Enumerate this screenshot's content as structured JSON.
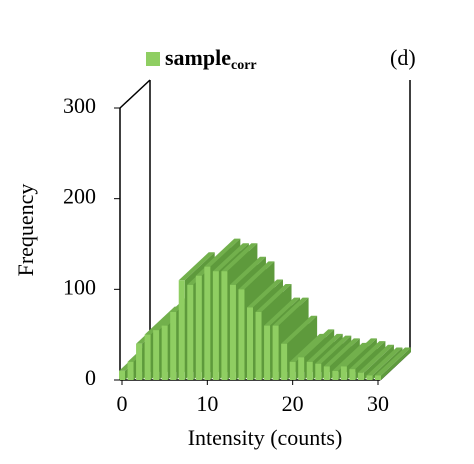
{
  "chart_data": {
    "type": "bar3d",
    "annotation": "(d)",
    "x_label": "Intensity (counts)",
    "y_label": "Frequency",
    "x": [
      0,
      1,
      2,
      3,
      4,
      5,
      6,
      7,
      8,
      9,
      10,
      11,
      12,
      13,
      14,
      15,
      16,
      17,
      18,
      19,
      20,
      21,
      22,
      23,
      24,
      25,
      26,
      27,
      28,
      29,
      30
    ],
    "series": [
      {
        "name": "sample",
        "name_subscript": "corr",
        "color": "#8fce62",
        "values": [
          10,
          20,
          40,
          50,
          55,
          60,
          75,
          110,
          105,
          115,
          125,
          120,
          120,
          105,
          100,
          80,
          75,
          60,
          60,
          40,
          20,
          25,
          20,
          18,
          15,
          10,
          15,
          12,
          8,
          5,
          5
        ]
      }
    ],
    "xlim": [
      0,
      30
    ],
    "xticks": [
      0,
      10,
      20,
      30
    ],
    "ylim": [
      0,
      300
    ],
    "yticks": [
      0,
      100,
      200,
      300
    ]
  }
}
